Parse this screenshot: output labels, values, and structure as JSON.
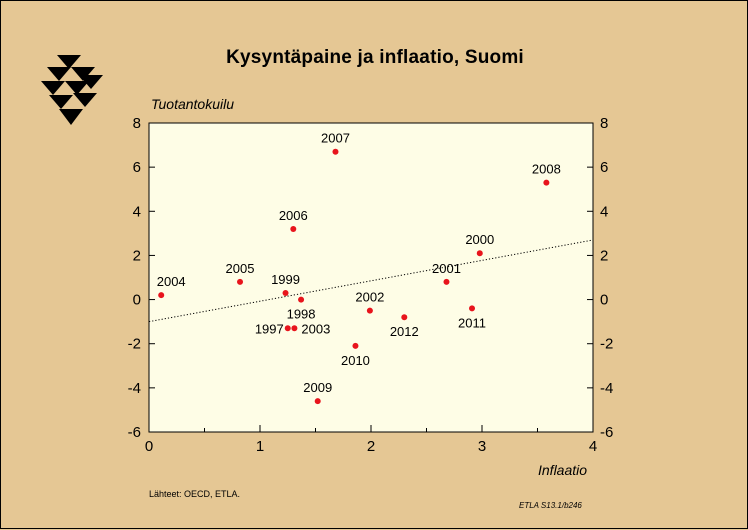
{
  "logo": {
    "name": "ETLA logo"
  },
  "chart_data": {
    "type": "scatter",
    "title": "Kysyntäpaine ja inflaatio, Suomi",
    "xlabel": "Inflaatio",
    "ylabel": "Tuotantokuilu",
    "xlim": [
      0,
      4
    ],
    "ylim": [
      -6,
      8
    ],
    "x_ticks": [
      "0",
      "1",
      "2",
      "3",
      "4"
    ],
    "y_ticks": [
      "8",
      "6",
      "4",
      "2",
      "0",
      "-2",
      "-4",
      "-6"
    ],
    "points": [
      {
        "label": "1997",
        "x": 1.25,
        "y": -1.3
      },
      {
        "label": "1998",
        "x": 1.37,
        "y": 0.0
      },
      {
        "label": "1999",
        "x": 1.23,
        "y": 0.3
      },
      {
        "label": "2000",
        "x": 2.98,
        "y": 2.1
      },
      {
        "label": "2001",
        "x": 2.68,
        "y": 0.8
      },
      {
        "label": "2002",
        "x": 1.99,
        "y": -0.5
      },
      {
        "label": "2003",
        "x": 1.31,
        "y": -1.3
      },
      {
        "label": "2004",
        "x": 0.11,
        "y": 0.2
      },
      {
        "label": "2005",
        "x": 0.82,
        "y": 0.8
      },
      {
        "label": "2006",
        "x": 1.3,
        "y": 3.2
      },
      {
        "label": "2007",
        "x": 1.68,
        "y": 6.7
      },
      {
        "label": "2008",
        "x": 3.58,
        "y": 5.3
      },
      {
        "label": "2009",
        "x": 1.52,
        "y": -4.6
      },
      {
        "label": "2010",
        "x": 1.86,
        "y": -2.1
      },
      {
        "label": "2011",
        "x": 2.91,
        "y": -0.4
      },
      {
        "label": "2012",
        "x": 2.3,
        "y": -0.8
      }
    ],
    "trendline": {
      "style": "dotted",
      "from": [
        0,
        -1.0
      ],
      "to": [
        4,
        2.7
      ]
    },
    "colors": {
      "background": "#e5c794",
      "plot_area": "#fefde6",
      "points": "#e8141c"
    }
  },
  "footer": {
    "source": "Lähteet:   OECD, ETLA.",
    "code": "ETLA S13.1/b246"
  }
}
